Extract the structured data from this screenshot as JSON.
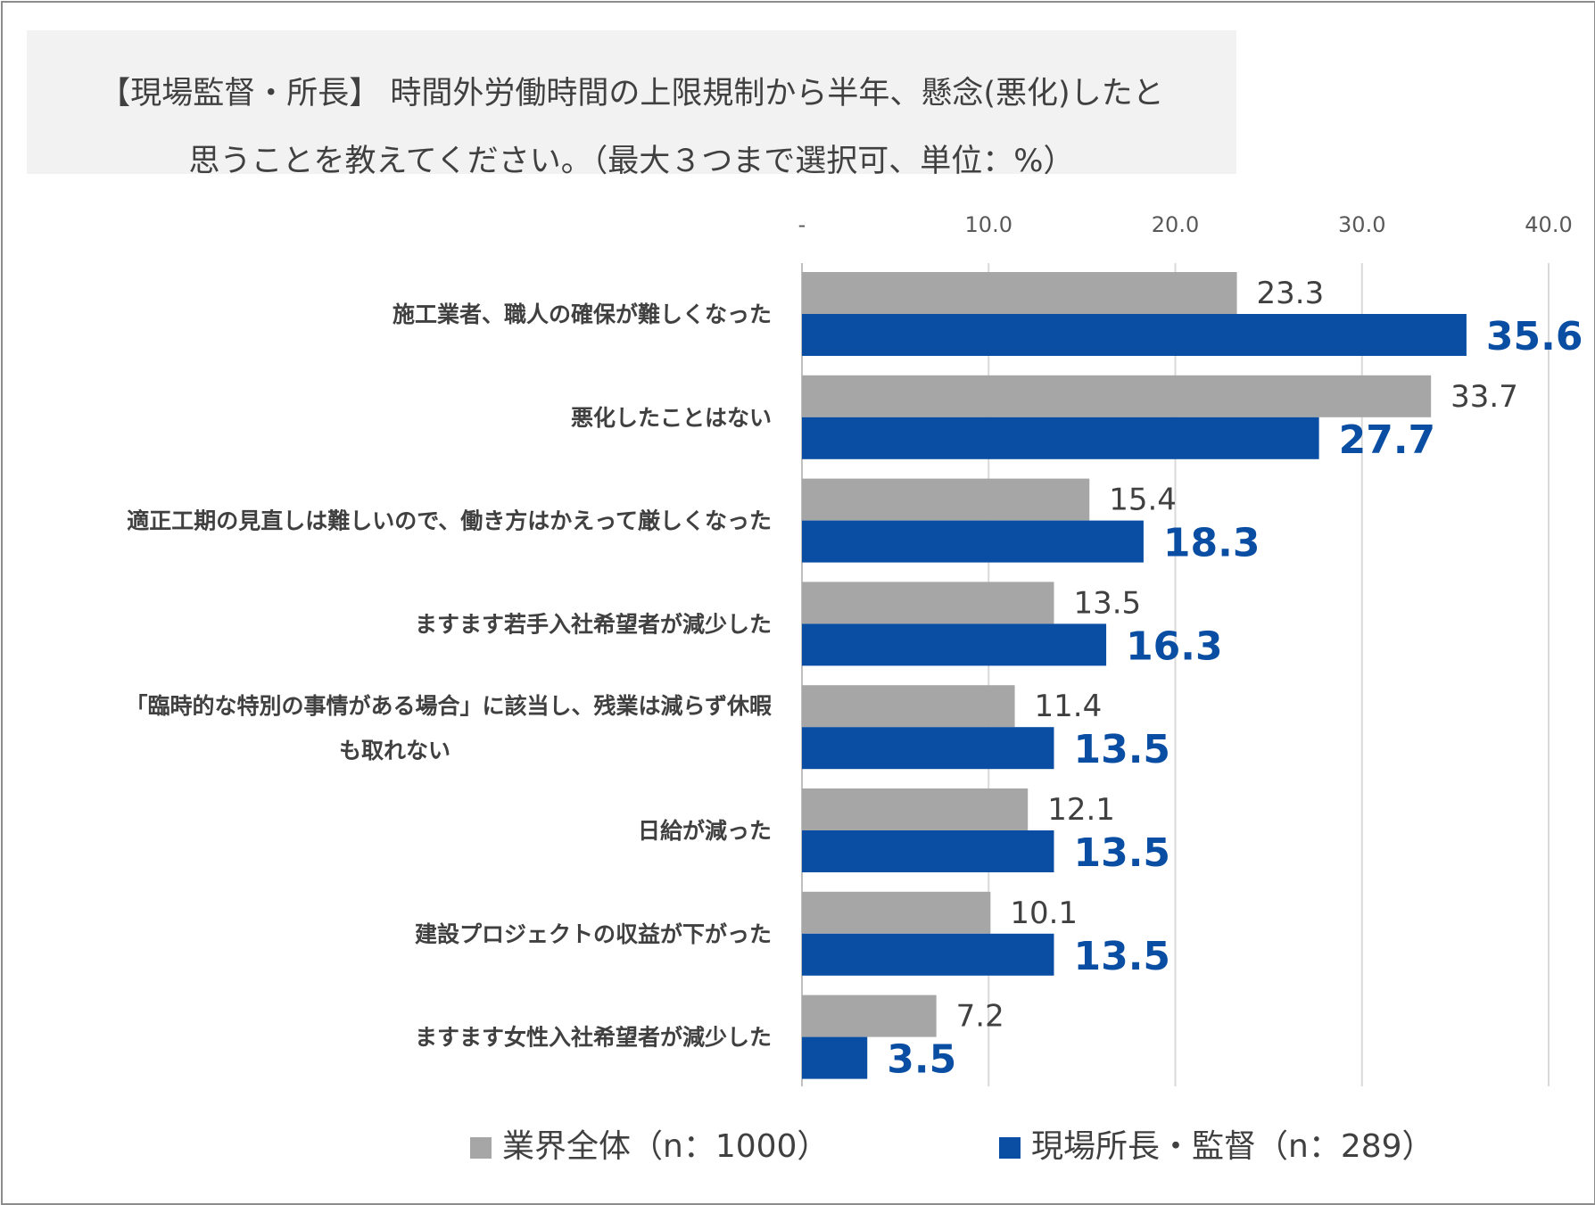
{
  "chart_data": {
    "type": "bar",
    "orientation": "horizontal",
    "title": "【現場監督・所長】 時間外労働時間の上限規制から半年、懸念(悪化)したと思うことを教えてください。（最大３つまで選択可、単位：%）",
    "title_lines": [
      "【現場監督・所長】 時間外労働時間の上限規制から半年、懸念(悪化)したと",
      "思うことを教えてください。（最大３つまで選択可、単位：%）"
    ],
    "categories": [
      [
        "施工業者、職人の確保が難しくなった"
      ],
      [
        "悪化したことはない"
      ],
      [
        "適正工期の見直しは難しいので、働き方はかえって厳しくなった"
      ],
      [
        "ますます若手入社希望者が減少した"
      ],
      [
        "「臨時的な特別の事情がある場合」に該当し、残業は減らず休暇",
        "も取れない"
      ],
      [
        "日給が減った"
      ],
      [
        "建設プロジェクトの収益が下がった"
      ],
      [
        "ますます女性入社希望者が減少した"
      ]
    ],
    "series": [
      {
        "name": "業界全体（n：1000）",
        "color": "#a6a6a6",
        "values": [
          23.3,
          33.7,
          15.4,
          13.5,
          11.4,
          12.1,
          10.1,
          7.2
        ],
        "labels": [
          "23.3",
          "33.7",
          "15.4",
          "13.5",
          "11.4",
          "12.1",
          "10.1",
          "7.2"
        ]
      },
      {
        "name": "現場所長・監督（n：289）",
        "color": "#0a4ea4",
        "values": [
          35.6,
          27.7,
          18.3,
          16.3,
          13.5,
          13.5,
          13.5,
          3.5
        ],
        "labels": [
          "35.6",
          "27.7",
          "18.3",
          "16.3",
          "13.5",
          "13.5",
          "13.5",
          "3.5"
        ]
      }
    ],
    "xlim": [
      0,
      40
    ],
    "xticks": [
      0,
      10,
      20,
      30,
      40
    ],
    "xtick_labels": [
      "-",
      "10.0",
      "20.0",
      "30.0",
      "40.0"
    ],
    "axis_position": "top",
    "grid": true,
    "legend_position": "bottom"
  }
}
